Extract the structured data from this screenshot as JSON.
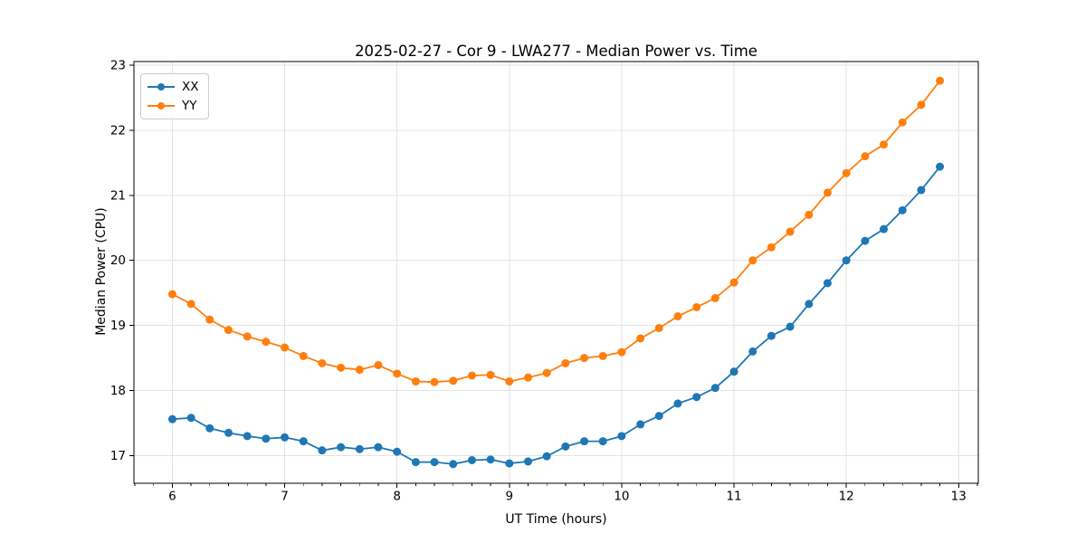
{
  "chart_data": {
    "type": "line",
    "title": "2025-02-27 - Cor 9 - LWA277 - Median Power vs. Time",
    "xlabel": "UT Time (hours)",
    "ylabel": "Median Power (CPU)",
    "xlim": [
      5.658,
      13.175
    ],
    "ylim": [
      16.575,
      23.055
    ],
    "xticks": [
      6,
      7,
      8,
      9,
      10,
      11,
      12,
      13
    ],
    "yticks": [
      17,
      18,
      19,
      20,
      21,
      22,
      23
    ],
    "x_minor_tick_step": 0.1667,
    "grid": true,
    "grid_color": "#e3e3e3",
    "legend_position": "upper left",
    "x": [
      6.0,
      6.167,
      6.333,
      6.5,
      6.667,
      6.833,
      7.0,
      7.167,
      7.333,
      7.5,
      7.667,
      7.833,
      8.0,
      8.167,
      8.333,
      8.5,
      8.667,
      8.833,
      9.0,
      9.167,
      9.333,
      9.5,
      9.667,
      9.833,
      10.0,
      10.167,
      10.333,
      10.5,
      10.667,
      10.833,
      11.0,
      11.167,
      11.333,
      11.5,
      11.667,
      11.833,
      12.0,
      12.167,
      12.333,
      12.5,
      12.667,
      12.833
    ],
    "series": [
      {
        "name": "XX",
        "color": "#1f77b4",
        "marker": "circle",
        "values": [
          17.56,
          17.58,
          17.42,
          17.35,
          17.3,
          17.26,
          17.28,
          17.22,
          17.08,
          17.13,
          17.1,
          17.13,
          17.06,
          16.9,
          16.9,
          16.87,
          16.93,
          16.94,
          16.88,
          16.91,
          16.99,
          17.14,
          17.22,
          17.22,
          17.3,
          17.48,
          17.61,
          17.8,
          17.9,
          18.04,
          18.29,
          18.6,
          18.84,
          18.98,
          19.33,
          19.65,
          20.0,
          20.3,
          20.48,
          20.77,
          21.08,
          21.44
        ]
      },
      {
        "name": "YY",
        "color": "#ff7f0e",
        "marker": "circle",
        "values": [
          19.48,
          19.33,
          19.09,
          18.93,
          18.83,
          18.75,
          18.66,
          18.53,
          18.42,
          18.35,
          18.32,
          18.39,
          18.26,
          18.14,
          18.13,
          18.15,
          18.23,
          18.24,
          18.14,
          18.2,
          18.27,
          18.42,
          18.5,
          18.53,
          18.59,
          18.8,
          18.96,
          19.14,
          19.28,
          19.42,
          19.66,
          20.0,
          20.2,
          20.44,
          20.7,
          21.04,
          21.34,
          21.6,
          21.78,
          22.12,
          22.39,
          22.76
        ]
      }
    ]
  }
}
